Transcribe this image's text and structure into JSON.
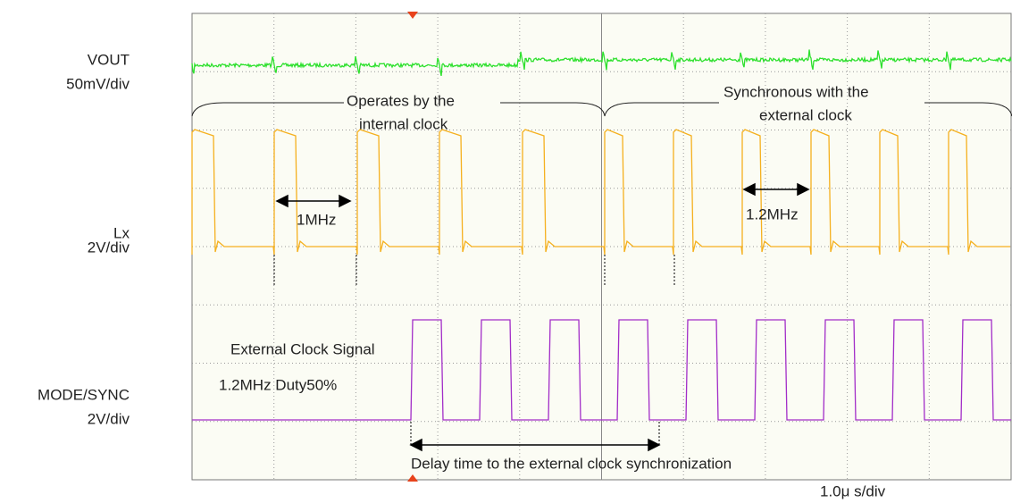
{
  "channels": [
    {
      "name": "VOUT",
      "scale": "50mV/div"
    },
    {
      "name": "Lx",
      "scale": "2V/div"
    },
    {
      "name": "MODE/SYNC",
      "scale": "2V/div"
    }
  ],
  "annotations": {
    "internal": [
      "Operates by the",
      "internal clock"
    ],
    "external": [
      "Synchronous with the",
      "external clock"
    ],
    "freq_internal": "1MHz",
    "freq_external": "1.2MHz",
    "clock_signal": [
      "External Clock Signal",
      "1.2MHz Duty50%"
    ],
    "delay": "Delay time to the external clock synchronization"
  },
  "timebase": "1.0μ s/div"
}
